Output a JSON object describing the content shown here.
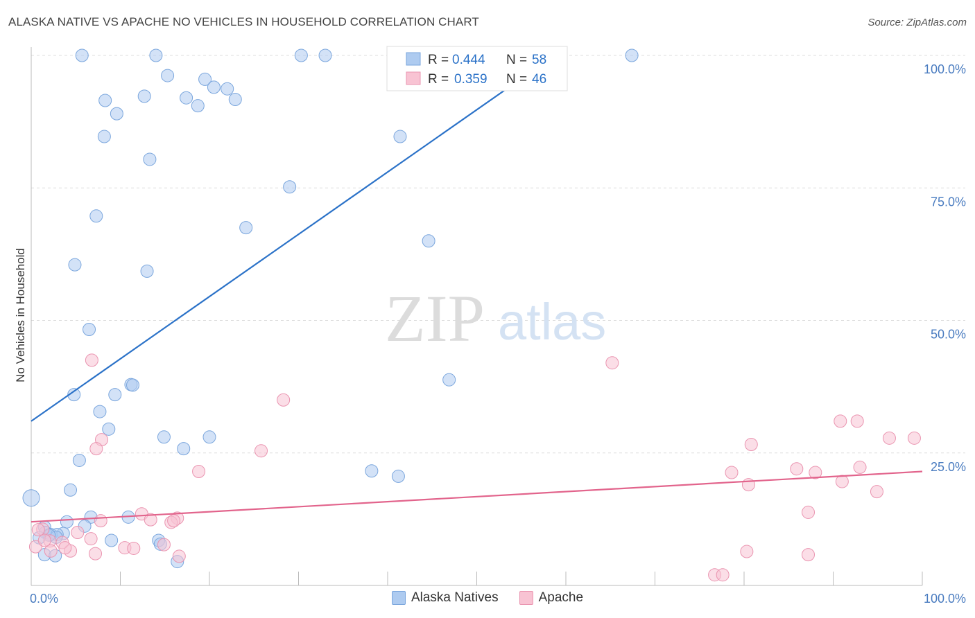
{
  "title": "ALASKA NATIVE VS APACHE NO VEHICLES IN HOUSEHOLD CORRELATION CHART",
  "source": "Source: ZipAtlas.com",
  "watermark": {
    "zip": "ZIP",
    "atlas": "atlas"
  },
  "colors": {
    "blue_fill": "#aecbf0",
    "blue_stroke": "#7aa6dd",
    "blue_line": "#2b72c8",
    "pink_fill": "#f8c3d3",
    "pink_stroke": "#ea94b0",
    "pink_line": "#e2648c",
    "tick_label": "#4a7cc0",
    "grid": "#dddddd"
  },
  "chart_data": {
    "type": "scatter",
    "xlabel": "",
    "ylabel": "No Vehicles in Household",
    "xlim": [
      0,
      100
    ],
    "ylim": [
      0,
      100
    ],
    "x_ticks": [
      "0.0%",
      "100.0%"
    ],
    "y_ticks": [
      "25.0%",
      "50.0%",
      "75.0%",
      "100.0%"
    ],
    "grid": true,
    "legend_top": [
      {
        "r_label": "R =",
        "r_value": "0.444",
        "n_label": "N =",
        "n_value": "58"
      },
      {
        "r_label": "R =",
        "r_value": "0.359",
        "n_label": "N =",
        "n_value": "46"
      }
    ],
    "series": [
      {
        "name": "Alaska Natives",
        "trend": {
          "x0": 0,
          "y0": 31,
          "x1": 60,
          "y1": 101.5,
          "x_end": 66,
          "y_end": 108.5
        },
        "points": [
          [
            5.7,
            100
          ],
          [
            14,
            100
          ],
          [
            30.3,
            100
          ],
          [
            33,
            100
          ],
          [
            67.4,
            100
          ],
          [
            15.3,
            96.2
          ],
          [
            19.5,
            95.5
          ],
          [
            20.5,
            94
          ],
          [
            22,
            93.7
          ],
          [
            12.7,
            92.3
          ],
          [
            8.3,
            91.5
          ],
          [
            17.4,
            92
          ],
          [
            18.7,
            90.5
          ],
          [
            22.9,
            91.7
          ],
          [
            9.6,
            89
          ],
          [
            8.2,
            84.7
          ],
          [
            41.4,
            84.7
          ],
          [
            13.3,
            80.4
          ],
          [
            29,
            75.2
          ],
          [
            7.3,
            69.7
          ],
          [
            24.1,
            67.5
          ],
          [
            44.6,
            65
          ],
          [
            4.9,
            60.5
          ],
          [
            13,
            59.3
          ],
          [
            6.5,
            48.3
          ],
          [
            46.9,
            38.8
          ],
          [
            11.2,
            37.9
          ],
          [
            11.4,
            37.8
          ],
          [
            4.8,
            36
          ],
          [
            9.4,
            36
          ],
          [
            7.7,
            32.8
          ],
          [
            8.7,
            29.5
          ],
          [
            14.9,
            28
          ],
          [
            20,
            28
          ],
          [
            17.1,
            25.8
          ],
          [
            5.4,
            23.6
          ],
          [
            38.2,
            21.6
          ],
          [
            41.2,
            20.6
          ],
          [
            4.4,
            18
          ],
          [
            0,
            16.5
          ],
          [
            10.9,
            12.9
          ],
          [
            6.7,
            12.9
          ],
          [
            4,
            12
          ],
          [
            6,
            11.2
          ],
          [
            1.5,
            11
          ],
          [
            1.6,
            10
          ],
          [
            3.6,
            9.8
          ],
          [
            2.2,
            9.6
          ],
          [
            2.9,
            9.6
          ],
          [
            2.8,
            9.1
          ],
          [
            2,
            9.5
          ],
          [
            0.9,
            9
          ],
          [
            14.3,
            8.5
          ],
          [
            9,
            8.5
          ],
          [
            14.5,
            7.8
          ],
          [
            1.5,
            5.8
          ],
          [
            2.7,
            5.6
          ],
          [
            16.4,
            4.5
          ]
        ]
      },
      {
        "name": "Apache",
        "trend": {
          "x0": 0,
          "y0": 12,
          "x1": 100,
          "y1": 21.5
        },
        "points": [
          [
            6.8,
            42.5
          ],
          [
            65.2,
            42
          ],
          [
            28.3,
            35
          ],
          [
            90.8,
            31
          ],
          [
            92.7,
            31
          ],
          [
            99.1,
            27.8
          ],
          [
            96.3,
            27.8
          ],
          [
            7.9,
            27.5
          ],
          [
            7.3,
            25.8
          ],
          [
            80.8,
            26.6
          ],
          [
            25.8,
            25.4
          ],
          [
            18.8,
            21.5
          ],
          [
            85.9,
            22
          ],
          [
            93,
            22.3
          ],
          [
            78.6,
            21.3
          ],
          [
            88,
            21.3
          ],
          [
            80.5,
            19
          ],
          [
            91,
            19.6
          ],
          [
            94.9,
            17.7
          ],
          [
            87.2,
            13.8
          ],
          [
            12.4,
            13.5
          ],
          [
            13.4,
            12.4
          ],
          [
            16.4,
            12.7
          ],
          [
            15.7,
            11.9
          ],
          [
            1.3,
            10.6
          ],
          [
            7.8,
            12.2
          ],
          [
            16,
            12.2
          ],
          [
            5.2,
            10
          ],
          [
            0.5,
            7.3
          ],
          [
            0.8,
            10.5
          ],
          [
            2.1,
            8.4
          ],
          [
            3.5,
            8.1
          ],
          [
            6.7,
            8.8
          ],
          [
            10.5,
            7.1
          ],
          [
            11.5,
            7
          ],
          [
            14.9,
            7.7
          ],
          [
            4.4,
            6.5
          ],
          [
            7.2,
            6
          ],
          [
            16.6,
            5.5
          ],
          [
            3.8,
            7.1
          ],
          [
            2.2,
            6.5
          ],
          [
            80.3,
            6.4
          ],
          [
            87.2,
            5.8
          ],
          [
            76.7,
            2
          ],
          [
            77.6,
            2
          ],
          [
            1.5,
            8.5
          ]
        ]
      }
    ]
  }
}
